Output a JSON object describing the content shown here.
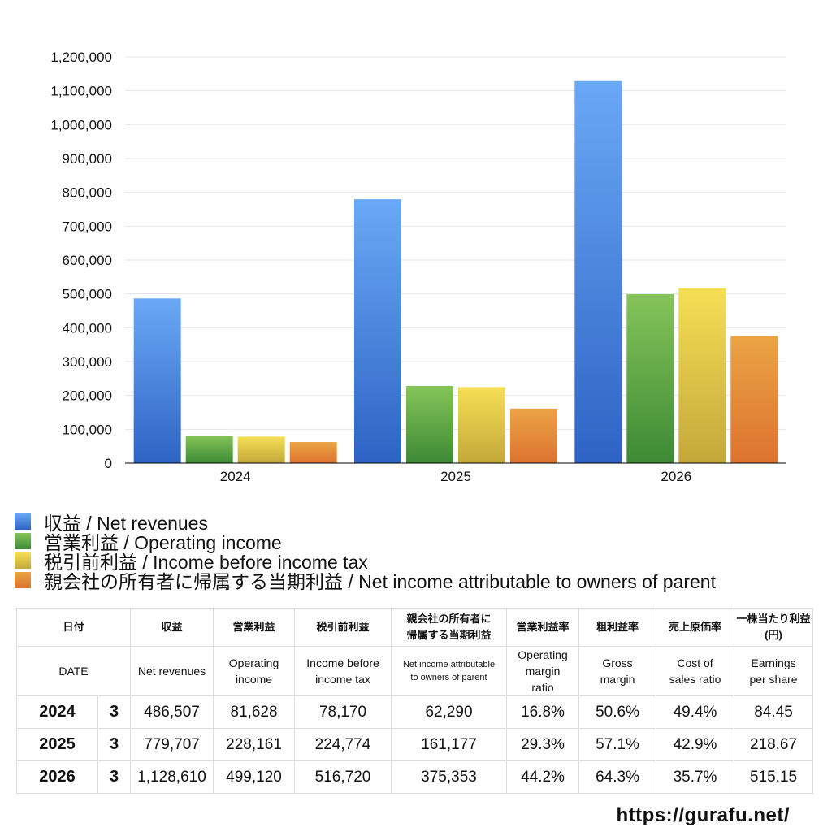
{
  "chart_data": {
    "type": "bar",
    "categories": [
      "2024",
      "2025",
      "2026"
    ],
    "series": [
      {
        "name": "収益 / Net revenues",
        "values": [
          486507,
          779707,
          1128610
        ],
        "color_top": "#6aa9f5",
        "color_bottom": "#2e63c4"
      },
      {
        "name": "営業利益 / Operating income",
        "values": [
          81628,
          228161,
          499120
        ],
        "color_top": "#86c45a",
        "color_bottom": "#3c8a34"
      },
      {
        "name": "税引前利益 / Income before income tax",
        "values": [
          78170,
          224774,
          516720
        ],
        "color_top": "#f5df55",
        "color_bottom": "#c3a83a"
      },
      {
        "name": "親会社の所有者に帰属する当期利益 / Net income attributable to owners of parent",
        "values": [
          62290,
          161177,
          375353
        ],
        "color_top": "#eba445",
        "color_bottom": "#dc732f"
      }
    ],
    "y_ticks": [
      "0",
      "100,000",
      "200,000",
      "300,000",
      "400,000",
      "500,000",
      "600,000",
      "700,000",
      "800,000",
      "900,000",
      "1,000,000",
      "1,100,000",
      "1,200,000"
    ],
    "ylim": [
      0,
      1200000
    ],
    "grid": true,
    "legend_placement": "bottom-left"
  },
  "table": {
    "header_jp": {
      "date": "日付",
      "revenues": "収益",
      "operating_income": "営業利益",
      "income_before_tax": "税引前利益",
      "net_income_l1": "親会社の所有者に",
      "net_income_l2": "帰属する当期利益",
      "operating_margin": "営業利益率",
      "gross_margin": "粗利益率",
      "cost_ratio": "売上原価率",
      "eps_l1": "一株当たり利益",
      "eps_l2": "(円)"
    },
    "header_en": {
      "date": "DATE",
      "revenues": "Net revenues",
      "operating_income_l1": "Operating",
      "operating_income_l2": "income",
      "income_before_tax_l1": "Income before",
      "income_before_tax_l2": "income tax",
      "net_income_l1": "Net income attributable",
      "net_income_l2": "to owners of parent",
      "operating_margin_l1": "Operating",
      "operating_margin_l2": "margin",
      "operating_margin_l3": "ratio",
      "gross_margin_l1": "Gross",
      "gross_margin_l2": "margin",
      "cost_ratio_l1": "Cost of",
      "cost_ratio_l2": "sales ratio",
      "eps_l1": "Earnings",
      "eps_l2": "per share"
    },
    "rows": [
      {
        "year": "2024",
        "month": "3",
        "revenues": "486,507",
        "operating_income": "81,628",
        "income_before_tax": "78,170",
        "net_income": "62,290",
        "operating_margin": "16.8%",
        "gross_margin": "50.6%",
        "cost_ratio": "49.4%",
        "eps": "84.45"
      },
      {
        "year": "2025",
        "month": "3",
        "revenues": "779,707",
        "operating_income": "228,161",
        "income_before_tax": "224,774",
        "net_income": "161,177",
        "operating_margin": "29.3%",
        "gross_margin": "57.1%",
        "cost_ratio": "42.9%",
        "eps": "218.67"
      },
      {
        "year": "2026",
        "month": "3",
        "revenues": "1,128,610",
        "operating_income": "499,120",
        "income_before_tax": "516,720",
        "net_income": "375,353",
        "operating_margin": "44.2%",
        "gross_margin": "64.3%",
        "cost_ratio": "35.7%",
        "eps": "515.15"
      }
    ]
  },
  "footer": {
    "url": "https://gurafu.net/"
  }
}
